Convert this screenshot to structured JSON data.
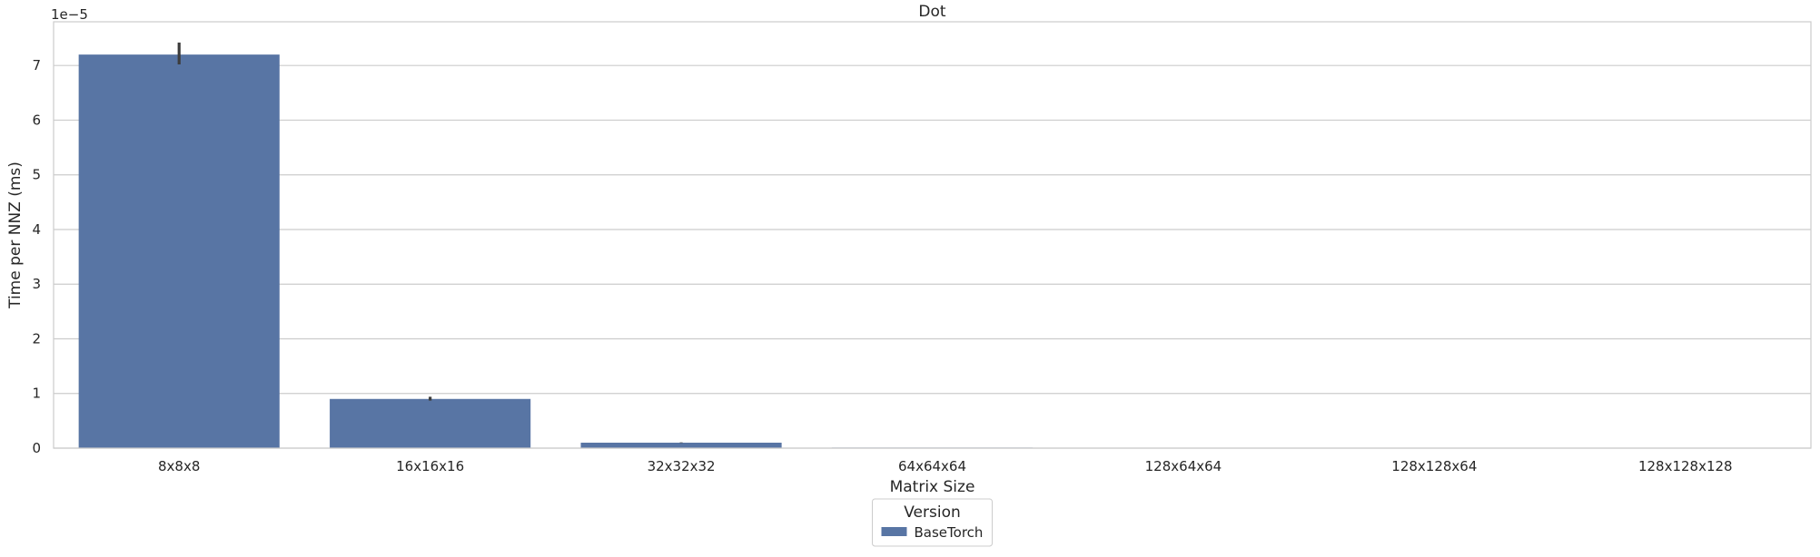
{
  "chart_data": {
    "type": "bar",
    "title": "Dot",
    "xlabel": "Matrix Size",
    "ylabel": "Time per NNZ (ms)",
    "y_scale_label": "1e−5",
    "y_multiplier": 1e-05,
    "categories": [
      "8x8x8",
      "16x16x16",
      "32x32x32",
      "64x64x64",
      "128x64x64",
      "128x128x64",
      "128x128x128"
    ],
    "series": [
      {
        "name": "BaseTorch",
        "color": "#5875a4",
        "values": [
          7.2e-05,
          9e-06,
          1e-06,
          1e-07,
          4e-08,
          2e-08,
          1e-08
        ],
        "error_low": [
          7.02e-05,
          8.7e-06,
          9.5e-07,
          null,
          null,
          null,
          null
        ],
        "error_high": [
          7.42e-05,
          9.4e-06,
          1.05e-06,
          null,
          null,
          null,
          null
        ]
      }
    ],
    "yticks": [
      0,
      1,
      2,
      3,
      4,
      5,
      6,
      7
    ],
    "ylim": [
      0,
      7.8e-05
    ],
    "grid": "horizontal",
    "legend": {
      "title": "Version",
      "placement": "below-center",
      "entries": [
        "BaseTorch"
      ]
    }
  }
}
